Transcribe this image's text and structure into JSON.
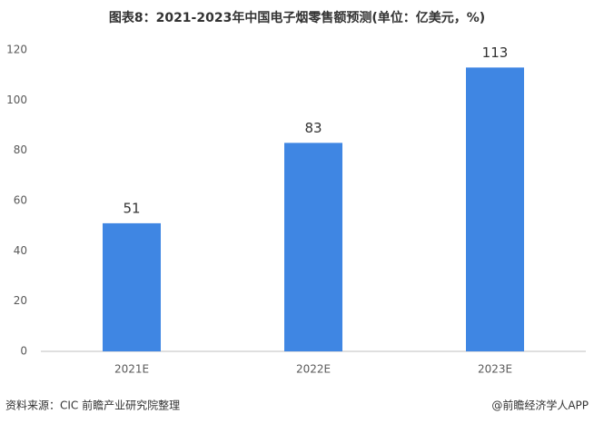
{
  "chart_data": {
    "type": "bar",
    "title": "图表8：2021-2023年中国电子烟零售额预测(单位：亿美元，%)",
    "categories": [
      "2021E",
      "2022E",
      "2023E"
    ],
    "values": [
      51,
      83,
      113
    ],
    "color": "#3f86e3",
    "ylim": [
      0,
      120
    ],
    "yticks": [
      0,
      20,
      40,
      60,
      80,
      100,
      120
    ],
    "grid": false,
    "source": "资料来源：CIC 前瞻产业研究院整理",
    "credit": "@前瞻经济学人APP"
  }
}
